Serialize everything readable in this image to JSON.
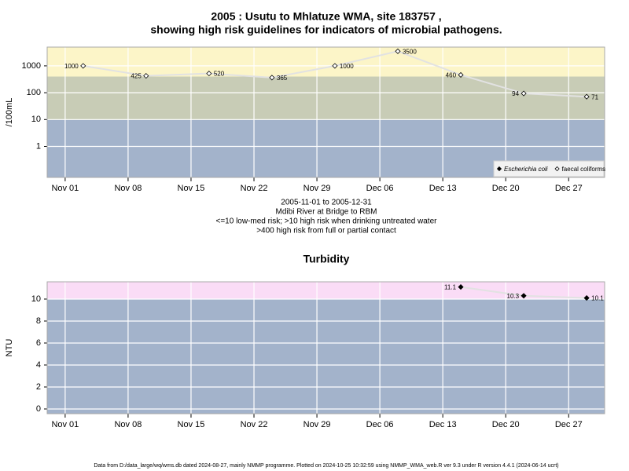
{
  "chart_data": [
    {
      "type": "scatter",
      "title": [
        "2005 : Usutu to Mhlatuze WMA, site 183757 ,",
        "showing high risk guidelines for indicators of microbial pathogens."
      ],
      "y_label": "/100mL",
      "ylog": true,
      "ylim": [
        0.07,
        5000
      ],
      "yticks": [
        1,
        10,
        100,
        1000
      ],
      "xlim": [
        "2005-10-30",
        "2005-12-31"
      ],
      "xticks": [
        {
          "value": "2005-11-01",
          "label": "Nov 01"
        },
        {
          "value": "2005-11-08",
          "label": "Nov 08"
        },
        {
          "value": "2005-11-15",
          "label": "Nov 15"
        },
        {
          "value": "2005-11-22",
          "label": "Nov 22"
        },
        {
          "value": "2005-11-29",
          "label": "Nov 29"
        },
        {
          "value": "2005-12-06",
          "label": "Dec 06"
        },
        {
          "value": "2005-12-13",
          "label": "Dec 13"
        },
        {
          "value": "2005-12-20",
          "label": "Dec 20"
        },
        {
          "value": "2005-12-27",
          "label": "Dec 27"
        }
      ],
      "thresholds": [
        10,
        400
      ],
      "band_colors": [
        "#a3b3cb",
        "#c8ccb6",
        "#fcf5c8"
      ],
      "grid": true,
      "legend": "lower right",
      "x": [
        "2005-11-03",
        "2005-11-10",
        "2005-11-17",
        "2005-11-24",
        "2005-12-01",
        "2005-12-08",
        "2005-12-15",
        "2005-12-22",
        "2005-12-29"
      ],
      "series": [
        {
          "name": "Escherichia coli",
          "marker": "filled",
          "color": "#000000",
          "values": [
            null,
            null,
            null,
            null,
            null,
            null,
            null,
            null,
            null
          ]
        },
        {
          "name": "faecal coliforms",
          "marker": "open",
          "color": "#000000",
          "values": [
            1000,
            425,
            520,
            365,
            1000,
            3500,
            460,
            94,
            71
          ]
        }
      ],
      "notes": [
        "2005-11-01 to 2005-12-31",
        "Mdibi River at Bridge to RBM",
        "<=10 low-med risk; >10 high risk when drinking untreated water",
        ">400 high risk from full or partial contact"
      ]
    },
    {
      "type": "scatter",
      "title": [
        "Turbidity"
      ],
      "y_label": "NTU",
      "ylog": false,
      "ylim": [
        -0.43,
        11.57
      ],
      "yticks": [
        0,
        2,
        4,
        6,
        8,
        10
      ],
      "xlim": [
        "2005-10-30",
        "2005-12-31"
      ],
      "xticks": [
        {
          "value": "2005-11-01",
          "label": "Nov 01"
        },
        {
          "value": "2005-11-08",
          "label": "Nov 08"
        },
        {
          "value": "2005-11-15",
          "label": "Nov 15"
        },
        {
          "value": "2005-11-22",
          "label": "Nov 22"
        },
        {
          "value": "2005-11-29",
          "label": "Nov 29"
        },
        {
          "value": "2005-12-06",
          "label": "Dec 06"
        },
        {
          "value": "2005-12-13",
          "label": "Dec 13"
        },
        {
          "value": "2005-12-20",
          "label": "Dec 20"
        },
        {
          "value": "2005-12-27",
          "label": "Dec 27"
        }
      ],
      "thresholds": [
        10
      ],
      "band_colors": [
        "#a3b3cb",
        "#fadcf6"
      ],
      "grid": true,
      "x": [
        "2005-12-15",
        "2005-12-22",
        "2005-12-29"
      ],
      "series": [
        {
          "marker": "filled",
          "color": "#000000",
          "values": [
            11.1,
            10.3,
            10.1
          ]
        }
      ]
    }
  ],
  "footer": "Data from D:/data_large/wq/wms.db dated 2024-08-27, mainly NMMP programme. Plotted on 2024-10-25 10:32:59 using NMMP_WMA_web.R ver 9.3 under R version 4.4.1 (2024-06-14 ucrt)"
}
